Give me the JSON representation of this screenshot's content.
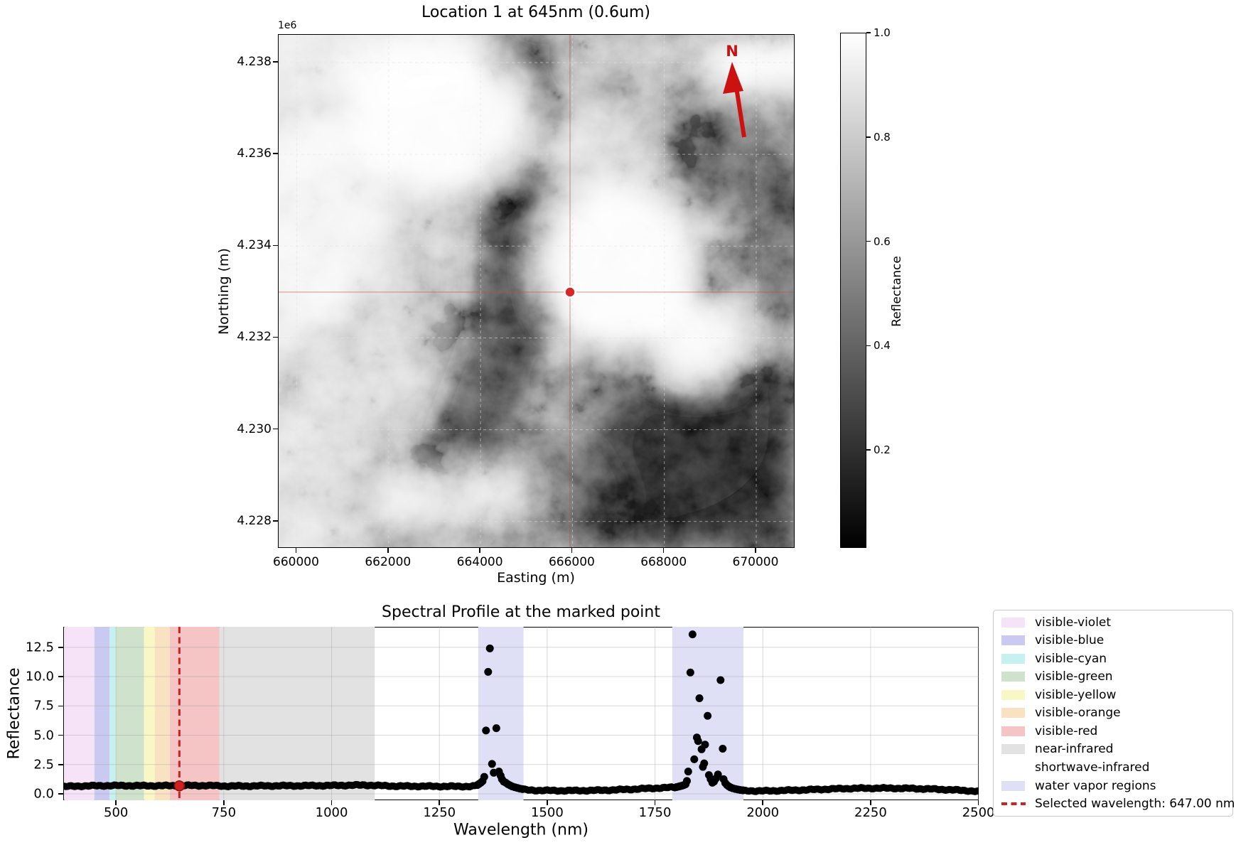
{
  "map_panel": {
    "title": "Location 1 at 645nm (0.6um)",
    "axis_offset_label": "1e6",
    "x_axis": {
      "label": "Easting (m)",
      "tick_labels": [
        "660000",
        "662000",
        "664000",
        "666000",
        "668000",
        "670000"
      ]
    },
    "y_axis": {
      "label": "Northing (m)",
      "tick_labels": [
        "4.238",
        "4.236",
        "4.234",
        "4.232",
        "4.230",
        "4.228"
      ]
    },
    "north_arrow_label": "N",
    "north_arrow_color": "#cc1111",
    "crosshair_color": "#cc4444",
    "marker_color": "#d62728",
    "colorbar": {
      "label": "Reflectance",
      "tick_labels": [
        "1.0",
        "0.8",
        "0.6",
        "0.4",
        "0.2"
      ]
    }
  },
  "spectral_panel": {
    "title": "Spectral Profile at the marked point",
    "x_axis": {
      "label": "Wavelength (nm)",
      "tick_labels": [
        "500",
        "750",
        "1000",
        "1250",
        "1500",
        "1750",
        "2000",
        "2250",
        "2500"
      ],
      "tick_values": [
        500,
        750,
        1000,
        1250,
        1500,
        1750,
        2000,
        2250,
        2500
      ]
    },
    "y_axis": {
      "label": "Reflectance",
      "tick_labels": [
        "0.0",
        "2.5",
        "5.0",
        "7.5",
        "10.0",
        "12.5"
      ],
      "tick_values": [
        0,
        2.5,
        5,
        7.5,
        10,
        12.5
      ]
    },
    "legend_items": [
      {
        "label": "visible-violet",
        "swatch": "#f7e3f7"
      },
      {
        "label": "visible-blue",
        "swatch": "#c9c9f1"
      },
      {
        "label": "visible-cyan",
        "swatch": "#c6f1f1"
      },
      {
        "label": "visible-green",
        "swatch": "#cfe2cc"
      },
      {
        "label": "visible-yellow",
        "swatch": "#faf7c6"
      },
      {
        "label": "visible-orange",
        "swatch": "#f9e2c2"
      },
      {
        "label": "visible-red",
        "swatch": "#f5c4c4"
      },
      {
        "label": "near-infrared",
        "swatch": "#e2e2e2"
      },
      {
        "label": "shortwave-infrared",
        "swatch": null
      },
      {
        "label": "water vapor regions",
        "swatch": "#dfdff6"
      },
      {
        "label": "Selected wavelength: 647.00 nm",
        "swatch": "dashed-line"
      }
    ]
  },
  "chart_data": [
    {
      "type": "heatmap",
      "title": "Location 1 at 645nm (0.6um)",
      "xlabel": "Easting (m)",
      "ylabel": "Northing (m)",
      "xlim": [
        659605,
        670870
      ],
      "ylim": [
        4227400,
        4238600
      ],
      "x_ticks": [
        660000,
        662000,
        664000,
        666000,
        668000,
        670000
      ],
      "y_ticks": [
        4238000,
        4236000,
        4234000,
        4232000,
        4230000,
        4228000
      ],
      "colorbar": {
        "label": "Reflectance",
        "range": [
          0.0,
          1.0
        ],
        "ticks": [
          1.0,
          0.8,
          0.6,
          0.4,
          0.2
        ],
        "colormap": "gray"
      },
      "marked_point": {
        "easting": 666000,
        "northing": 4233000
      },
      "description": "grayscale reflectance image with red crosshair at marked point and red north arrow"
    },
    {
      "type": "scatter",
      "title": "Spectral Profile at the marked point",
      "xlabel": "Wavelength (nm)",
      "ylabel": "Reflectance",
      "xlim": [
        377.7,
        2500.7
      ],
      "ylim": [
        -0.55,
        14.24
      ],
      "grid": true,
      "marker_color": "#000000",
      "selected_wavelength_nm": 647.0,
      "selected_point": [
        647.0,
        0.68
      ],
      "selected_line_color": "#cc2222",
      "bands": [
        {
          "name": "visible-violet",
          "start": 380,
          "end": 450,
          "color": "#f7e3f7"
        },
        {
          "name": "visible-blue",
          "start": 450,
          "end": 485,
          "color": "#c9c9f1"
        },
        {
          "name": "visible-cyan",
          "start": 485,
          "end": 500,
          "color": "#c6f1f1"
        },
        {
          "name": "visible-green",
          "start": 500,
          "end": 565,
          "color": "#cfe2cc"
        },
        {
          "name": "visible-yellow",
          "start": 565,
          "end": 590,
          "color": "#faf7c6"
        },
        {
          "name": "visible-orange",
          "start": 590,
          "end": 625,
          "color": "#f9e2c2"
        },
        {
          "name": "visible-red",
          "start": 625,
          "end": 740,
          "color": "#f5c4c4"
        },
        {
          "name": "near-infrared",
          "start": 740,
          "end": 1100,
          "color": "#e2e2e2"
        },
        {
          "name": "shortwave-infrared",
          "start": 1100,
          "end": 2500,
          "color": null
        }
      ],
      "water_vapor_regions": [
        [
          1340,
          1445
        ],
        [
          1790,
          1955
        ]
      ],
      "water_vapor_color": "#dfdff6",
      "baseline_points": [
        [
          380,
          0.62
        ],
        [
          410,
          0.66
        ],
        [
          440,
          0.68
        ],
        [
          480,
          0.7
        ],
        [
          520,
          0.7
        ],
        [
          560,
          0.69
        ],
        [
          600,
          0.69
        ],
        [
          640,
          0.7
        ],
        [
          680,
          0.71
        ],
        [
          720,
          0.7
        ],
        [
          760,
          0.66
        ],
        [
          800,
          0.67
        ],
        [
          840,
          0.68
        ],
        [
          880,
          0.69
        ],
        [
          920,
          0.69
        ],
        [
          960,
          0.7
        ],
        [
          1000,
          0.71
        ],
        [
          1040,
          0.73
        ],
        [
          1080,
          0.75
        ],
        [
          1110,
          0.7
        ],
        [
          1150,
          0.66
        ],
        [
          1200,
          0.65
        ],
        [
          1250,
          0.64
        ],
        [
          1300,
          0.63
        ],
        [
          1320,
          0.64
        ],
        [
          1332,
          0.66
        ],
        [
          1450,
          0.34
        ],
        [
          1470,
          0.3
        ],
        [
          1500,
          0.28
        ],
        [
          1540,
          0.27
        ],
        [
          1580,
          0.28
        ],
        [
          1620,
          0.3
        ],
        [
          1660,
          0.34
        ],
        [
          1700,
          0.4
        ],
        [
          1730,
          0.45
        ],
        [
          1760,
          0.5
        ],
        [
          1780,
          0.53
        ],
        [
          1794,
          0.55
        ],
        [
          1960,
          0.28
        ],
        [
          1990,
          0.24
        ],
        [
          2020,
          0.26
        ],
        [
          2060,
          0.3
        ],
        [
          2100,
          0.34
        ],
        [
          2140,
          0.39
        ],
        [
          2180,
          0.44
        ],
        [
          2220,
          0.47
        ],
        [
          2260,
          0.48
        ],
        [
          2300,
          0.48
        ],
        [
          2340,
          0.46
        ],
        [
          2380,
          0.42
        ],
        [
          2420,
          0.37
        ],
        [
          2450,
          0.32
        ],
        [
          2475,
          0.27
        ],
        [
          2500,
          0.2
        ]
      ],
      "baseline_sample_step_nm": 4,
      "baseline_skip_ranges": [
        [
          1336,
          1447
        ],
        [
          1797,
          1957
        ]
      ],
      "peak_points": [
        [
          1338,
          0.75
        ],
        [
          1342,
          0.85
        ],
        [
          1346,
          0.95
        ],
        [
          1350,
          1.08
        ],
        [
          1354,
          1.45
        ],
        [
          1358,
          5.4
        ],
        [
          1363,
          10.4
        ],
        [
          1367,
          12.4
        ],
        [
          1372,
          2.55
        ],
        [
          1376,
          1.8
        ],
        [
          1382,
          5.6
        ],
        [
          1388,
          1.9
        ],
        [
          1392,
          1.55
        ],
        [
          1395,
          1.25
        ],
        [
          1399,
          1.05
        ],
        [
          1404,
          0.95
        ],
        [
          1409,
          0.82
        ],
        [
          1414,
          0.72
        ],
        [
          1419,
          0.63
        ],
        [
          1425,
          0.56
        ],
        [
          1431,
          0.5
        ],
        [
          1437,
          0.44
        ],
        [
          1443,
          0.4
        ],
        [
          1800,
          0.58
        ],
        [
          1805,
          0.62
        ],
        [
          1809,
          0.66
        ],
        [
          1813,
          0.7
        ],
        [
          1817,
          0.75
        ],
        [
          1821,
          0.82
        ],
        [
          1824,
          1.1
        ],
        [
          1827,
          1.9
        ],
        [
          1832,
          10.35
        ],
        [
          1837,
          13.6
        ],
        [
          1841,
          2.95
        ],
        [
          1847,
          4.8
        ],
        [
          1850,
          4.5
        ],
        [
          1853,
          8.15
        ],
        [
          1858,
          3.8
        ],
        [
          1861,
          2.3
        ],
        [
          1864,
          2.6
        ],
        [
          1866,
          4.2
        ],
        [
          1872,
          6.65
        ],
        [
          1875,
          1.6
        ],
        [
          1879,
          1.25
        ],
        [
          1883,
          0.95
        ],
        [
          1887,
          1.05
        ],
        [
          1891,
          1.3
        ],
        [
          1896,
          1.65
        ],
        [
          1902,
          9.7
        ],
        [
          1907,
          3.85
        ],
        [
          1909,
          1.25
        ],
        [
          1913,
          0.92
        ],
        [
          1917,
          0.75
        ],
        [
          1921,
          0.64
        ],
        [
          1925,
          0.55
        ],
        [
          1930,
          0.48
        ],
        [
          1936,
          0.42
        ],
        [
          1942,
          0.37
        ],
        [
          1948,
          0.33
        ],
        [
          1954,
          0.3
        ]
      ]
    }
  ]
}
